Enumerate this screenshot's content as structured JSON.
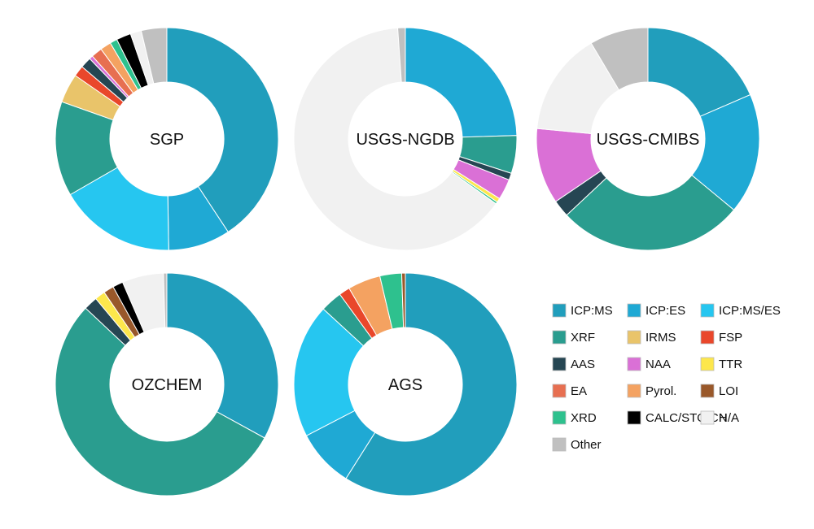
{
  "categories": [
    "ICP:MS",
    "ICP:ES",
    "ICP:MS/ES",
    "XRF",
    "IRMS",
    "FSP",
    "AAS",
    "NAA",
    "TTR",
    "EA",
    "Pyrol.",
    "LOI",
    "XRD",
    "CALC/STOICH",
    "N/A",
    "Other"
  ],
  "colors": {
    "ICP:MS": "#219EBC",
    "ICP:ES": "#1FA9D4",
    "ICP:MS/ES": "#26C6F0",
    "XRF": "#2A9D8F",
    "IRMS": "#E9C46A",
    "FSP": "#E9472B",
    "AAS": "#264653",
    "NAA": "#DA70D6",
    "TTR": "#FDE74C",
    "EA": "#E76F51",
    "Pyrol.": "#F4A261",
    "LOI": "#99582A",
    "XRD": "#2EC18E",
    "CALC/STOICH": "#000000",
    "N/A": "#F1F1F1",
    "Other": "#C0C0C0"
  },
  "chart_data": [
    {
      "type": "pie",
      "variant": "donut",
      "title": "SGP",
      "slices": [
        {
          "label": "ICP:MS",
          "value": 38.5
        },
        {
          "label": "ICP:ES",
          "value": 8.5
        },
        {
          "label": "ICP:MS/ES",
          "value": 16.0
        },
        {
          "label": "XRF",
          "value": 13.0
        },
        {
          "label": "IRMS",
          "value": 4.0
        },
        {
          "label": "FSP",
          "value": 1.5
        },
        {
          "label": "AAS",
          "value": 1.5
        },
        {
          "label": "NAA",
          "value": 0.5
        },
        {
          "label": "EA",
          "value": 1.5
        },
        {
          "label": "Pyrol.",
          "value": 1.5
        },
        {
          "label": "XRD",
          "value": 1.0
        },
        {
          "label": "CALC/STOICH",
          "value": 2.0
        },
        {
          "label": "N/A",
          "value": 1.5
        },
        {
          "label": "Other",
          "value": 3.5
        }
      ]
    },
    {
      "type": "pie",
      "variant": "donut",
      "title": "USGS-NGDB",
      "slices": [
        {
          "label": "ICP:ES",
          "value": 24.5
        },
        {
          "label": "XRF",
          "value": 5.5
        },
        {
          "label": "AAS",
          "value": 1.0
        },
        {
          "label": "NAA",
          "value": 3.0
        },
        {
          "label": "TTR",
          "value": 0.6
        },
        {
          "label": "XRD",
          "value": 0.3
        },
        {
          "label": "N/A",
          "value": 64.0
        },
        {
          "label": "Other",
          "value": 1.1
        }
      ]
    },
    {
      "type": "pie",
      "variant": "donut",
      "title": "USGS-CMIBS",
      "slices": [
        {
          "label": "ICP:MS",
          "value": 18.5
        },
        {
          "label": "ICP:ES",
          "value": 17.5
        },
        {
          "label": "XRF",
          "value": 27.0
        },
        {
          "label": "AAS",
          "value": 2.5
        },
        {
          "label": "NAA",
          "value": 11.0
        },
        {
          "label": "N/A",
          "value": 15.0
        },
        {
          "label": "Other",
          "value": 8.5
        }
      ]
    },
    {
      "type": "pie",
      "variant": "donut",
      "title": "OZCHEM",
      "slices": [
        {
          "label": "ICP:MS",
          "value": 33.0
        },
        {
          "label": "XRF",
          "value": 54.0
        },
        {
          "label": "AAS",
          "value": 2.0
        },
        {
          "label": "TTR",
          "value": 1.5
        },
        {
          "label": "LOI",
          "value": 1.5
        },
        {
          "label": "CALC/STOICH",
          "value": 1.5
        },
        {
          "label": "N/A",
          "value": 6.0
        },
        {
          "label": "Other",
          "value": 0.5
        }
      ]
    },
    {
      "type": "pie",
      "variant": "donut",
      "title": "AGS",
      "slices": [
        {
          "label": "ICP:MS",
          "value": 56.0
        },
        {
          "label": "ICP:ES",
          "value": 8.0
        },
        {
          "label": "ICP:MS/ES",
          "value": 18.5
        },
        {
          "label": "XRF",
          "value": 3.0
        },
        {
          "label": "FSP",
          "value": 1.5
        },
        {
          "label": "Pyrol.",
          "value": 4.5
        },
        {
          "label": "XRD",
          "value": 3.0
        },
        {
          "label": "LOI",
          "value": 0.5
        }
      ]
    }
  ],
  "legend": {
    "placement": "bottom-right",
    "items": [
      "ICP:MS",
      "ICP:ES",
      "ICP:MS/ES",
      "XRF",
      "IRMS",
      "FSP",
      "AAS",
      "NAA",
      "TTR",
      "EA",
      "Pyrol.",
      "LOI",
      "XRD",
      "CALC/STOICH",
      "N/A",
      "Other"
    ]
  }
}
